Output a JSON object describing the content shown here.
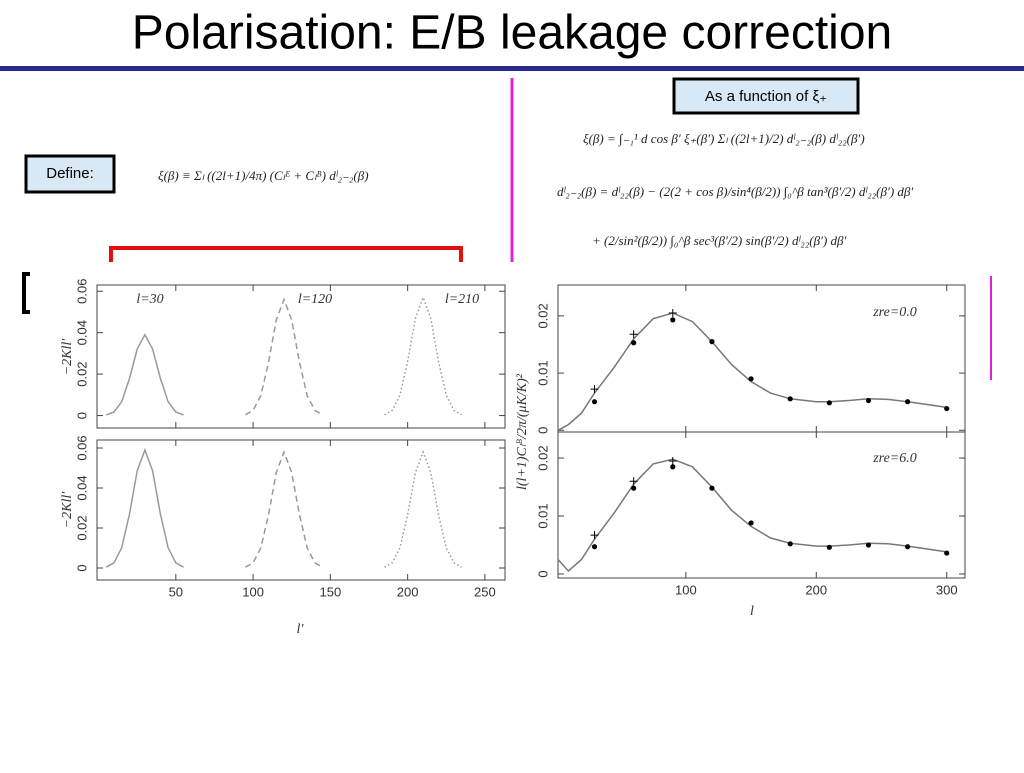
{
  "header": {
    "title": "Polarisation: E/B leakage correction"
  },
  "boxes": {
    "define": "Define:",
    "function_of": "As a function of ξ₊"
  },
  "equations": [
    "ξ(β) ≡ Σₗ ((2l+1)/4π) (Cₗᴱ + Cₗᴮ) dˡ₂₋₂(β)",
    "ξ(β) = ∫₋₁¹ d cos β′ ξ₊(β′) Σₗ ((2l+1)/2) dˡ₂₋₂(β) dˡ₂₂(β′)",
    "dˡ₂₋₂(β) = dˡ₂₂(β) − (2(2 + cos β)/sin⁴(β/2)) ∫₀^β tan³(β′/2) dˡ₂₂(β′) dβ′",
    "+ (2/sin²(β/2)) ∫₀^β sec³(β′/2) sin(β′/2) dˡ₂₂(β′) dβ′"
  ],
  "chart_data": [
    {
      "type": "line",
      "ylabel": "−2Kll′",
      "xlim": [
        -1,
        263
      ],
      "ylim": [
        -0.006,
        0.063
      ],
      "xticks": [
        50,
        100,
        150,
        200,
        250
      ],
      "xtick_labels": false,
      "yticks": [
        0,
        0.02,
        0.04,
        0.06
      ],
      "annotations": [
        "l=30",
        "l=120",
        "l=210"
      ],
      "series": [
        {
          "style": "solid",
          "color": "#999999",
          "x": [
            5,
            10,
            15,
            20,
            25,
            30,
            35,
            40,
            45,
            50,
            55
          ],
          "values": [
            0.0003,
            0.0017,
            0.0067,
            0.0179,
            0.0321,
            0.039,
            0.0321,
            0.0179,
            0.0067,
            0.0017,
            0.0003
          ]
        },
        {
          "style": "dashed",
          "color": "#999999",
          "x": [
            95,
            100,
            105,
            110,
            115,
            120,
            125,
            130,
            135,
            140,
            145
          ],
          "values": [
            0.0004,
            0.0025,
            0.0096,
            0.0256,
            0.0461,
            0.056,
            0.0461,
            0.0256,
            0.0096,
            0.0025,
            0.0004
          ]
        },
        {
          "style": "dotted",
          "color": "#999999",
          "x": [
            185,
            190,
            195,
            200,
            205,
            210,
            215,
            220,
            225,
            230,
            235
          ],
          "values": [
            0.0004,
            0.0025,
            0.0098,
            0.0261,
            0.0469,
            0.057,
            0.0469,
            0.0261,
            0.0098,
            0.0025,
            0.0004
          ]
        }
      ]
    },
    {
      "type": "line",
      "ylabel": "−2Kll′",
      "xlabel": "l′",
      "xlim": [
        -1,
        263
      ],
      "ylim": [
        -0.006,
        0.064
      ],
      "xticks": [
        50,
        100,
        150,
        200,
        250
      ],
      "yticks": [
        0,
        0.02,
        0.04,
        0.06
      ],
      "series": [
        {
          "style": "solid",
          "color": "#999999",
          "x": [
            5,
            10,
            15,
            20,
            25,
            30,
            35,
            40,
            45,
            50,
            55
          ],
          "values": [
            0.0004,
            0.0026,
            0.0101,
            0.027,
            0.0486,
            0.059,
            0.0486,
            0.027,
            0.0101,
            0.0026,
            0.0004
          ]
        },
        {
          "style": "dashed",
          "color": "#999999",
          "x": [
            95,
            100,
            105,
            110,
            115,
            120,
            125,
            130,
            135,
            140,
            145
          ],
          "values": [
            0.0004,
            0.0026,
            0.01,
            0.0266,
            0.0477,
            0.058,
            0.0477,
            0.0266,
            0.01,
            0.0026,
            0.0004
          ]
        },
        {
          "style": "dotted",
          "color": "#999999",
          "x": [
            185,
            190,
            195,
            200,
            205,
            210,
            215,
            220,
            225,
            230,
            235
          ],
          "values": [
            0.0004,
            0.0026,
            0.01,
            0.0266,
            0.0477,
            0.058,
            0.0477,
            0.0266,
            0.01,
            0.0026,
            0.0004
          ]
        }
      ]
    },
    {
      "type": "line",
      "ylabel": "l(l+1)Cₗᴮ/2π/(μK/K)²",
      "xlim": [
        2,
        314
      ],
      "ylim": [
        -0.0003,
        0.0254
      ],
      "xticks": [
        100,
        200,
        300
      ],
      "xtick_labels": false,
      "yticks": [
        0,
        0.01,
        0.02
      ],
      "annotations": [
        "zre=0.0"
      ],
      "series": [
        {
          "style": "solid",
          "color": "#777777",
          "x": [
            2,
            10,
            20,
            30,
            45,
            60,
            75,
            90,
            105,
            120,
            135,
            150,
            165,
            180,
            200,
            210,
            225,
            240,
            255,
            270,
            285,
            300
          ],
          "values": [
            0,
            0.001,
            0.003,
            0.0065,
            0.011,
            0.016,
            0.0195,
            0.0205,
            0.019,
            0.0155,
            0.0115,
            0.0085,
            0.0065,
            0.0055,
            0.005,
            0.005,
            0.0052,
            0.0055,
            0.0054,
            0.005,
            0.0045,
            0.004
          ]
        },
        {
          "style": "dots",
          "color": "#000000",
          "x": [
            30,
            60,
            90,
            120,
            150,
            180,
            210,
            240,
            270,
            300
          ],
          "values": [
            0.005,
            0.0153,
            0.0193,
            0.0155,
            0.009,
            0.0055,
            0.0048,
            0.0052,
            0.005,
            0.0038
          ]
        },
        {
          "style": "crosses",
          "color": "#000000",
          "x": [
            30,
            60,
            90
          ],
          "values": [
            0.0072,
            0.0168,
            0.0205
          ]
        }
      ]
    },
    {
      "type": "line",
      "xlabel": "l",
      "xlim": [
        2,
        314
      ],
      "ylim": [
        -0.0007,
        0.0245
      ],
      "xticks": [
        100,
        200,
        300
      ],
      "yticks": [
        0,
        0.01,
        0.02
      ],
      "annotations": [
        "zre=6.0"
      ],
      "series": [
        {
          "style": "solid",
          "color": "#777777",
          "x": [
            2,
            10,
            20,
            30,
            45,
            60,
            75,
            90,
            105,
            120,
            135,
            150,
            165,
            180,
            200,
            210,
            225,
            240,
            255,
            270,
            285,
            300
          ],
          "values": [
            0.0025,
            0.0005,
            0.0025,
            0.006,
            0.0105,
            0.0155,
            0.019,
            0.0198,
            0.0185,
            0.015,
            0.011,
            0.0082,
            0.0062,
            0.0053,
            0.0048,
            0.0048,
            0.005,
            0.0053,
            0.0052,
            0.0048,
            0.0043,
            0.0038
          ]
        },
        {
          "style": "dots",
          "color": "#000000",
          "x": [
            30,
            60,
            90,
            120,
            150,
            180,
            210,
            240,
            270,
            300
          ],
          "values": [
            0.0047,
            0.0148,
            0.0185,
            0.0148,
            0.0088,
            0.0052,
            0.0046,
            0.005,
            0.0047,
            0.0036
          ]
        },
        {
          "style": "crosses",
          "color": "#000000",
          "x": [
            30,
            60,
            90
          ],
          "values": [
            0.0067,
            0.016,
            0.0195
          ]
        }
      ]
    }
  ]
}
